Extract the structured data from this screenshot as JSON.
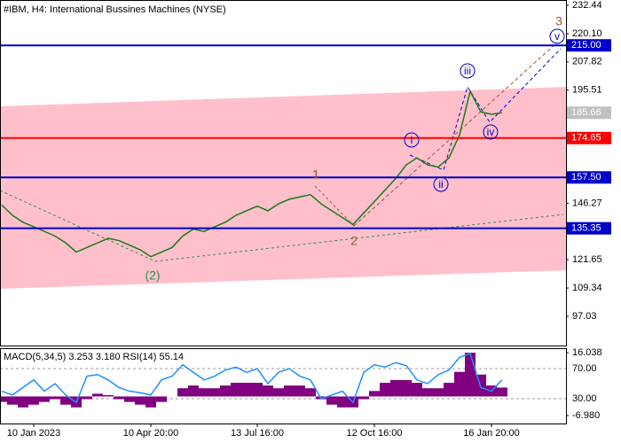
{
  "chart_data": [
    {
      "type": "line",
      "title": "#IBM, H4:  International Bussines Machines (NYSE)",
      "color": "#1a7a1a",
      "categories": [
        null,
        null,
        null,
        "10 Jan 2023",
        null,
        null,
        null,
        null,
        null,
        null,
        null,
        null,
        null,
        null,
        "10 Apr 20:00",
        null,
        null,
        null,
        null,
        null,
        null,
        null,
        null,
        null,
        "13 Jul 16:00",
        null,
        null,
        null,
        null,
        null,
        null,
        null,
        null,
        null,
        null,
        "12 Oct 16:00",
        null,
        null,
        null,
        null,
        null,
        null,
        null,
        null,
        null,
        null,
        "16 Jan 20:00",
        null
      ],
      "values": [
        145.5,
        141,
        138,
        136,
        134,
        132,
        129,
        125,
        127,
        129,
        131,
        130,
        128,
        126,
        123,
        125,
        127,
        132,
        135,
        134,
        136,
        138,
        141,
        143,
        145,
        143,
        146,
        148,
        149,
        150,
        146,
        143,
        140,
        137,
        142,
        147,
        152,
        157,
        163,
        166,
        163,
        162,
        166,
        176,
        195,
        186,
        185,
        185.66
      ],
      "ylim": [
        84.3,
        234.76
      ],
      "yticks": [
        {
          "value": 232.44,
          "label": "232.44"
        },
        {
          "value": 220.1,
          "label": "220.10"
        },
        {
          "value": 207.82,
          "label": "207.82"
        },
        {
          "value": 195.51,
          "label": "195.51"
        },
        {
          "value": 146.27,
          "label": "146.27"
        },
        {
          "value": 121.65,
          "label": "121.65"
        },
        {
          "value": 109.34,
          "label": "109.34"
        },
        {
          "value": 97.03,
          "label": "97.03"
        }
      ],
      "levels": [
        {
          "value": 215,
          "label": "215.00",
          "color": "#0000cd"
        },
        {
          "value": 174.65,
          "label": "174.65",
          "color": "#ff0000"
        },
        {
          "value": 157.5,
          "label": "157.50",
          "color": "#0000cd"
        },
        {
          "value": 135.35,
          "label": "135.35",
          "color": "#0000cd"
        }
      ],
      "annotations": [
        "1",
        "2",
        "(2)",
        "3",
        "i",
        "ii",
        "iii",
        "iv",
        "v"
      ]
    },
    {
      "type": "macd",
      "title": "MACD(5,34,5) 3.253 3.180 RSI(14) 55.14",
      "series": [
        {
          "name": "MACD",
          "color": "#800080",
          "values": [
            -2,
            -3,
            -4,
            -3,
            -2,
            -1,
            -3,
            -4,
            -1,
            1,
            0.5,
            -1,
            -2,
            -3,
            -4,
            -2,
            0,
            3,
            4,
            3,
            3,
            4,
            5,
            5,
            5,
            4,
            3,
            4,
            4,
            3,
            -1,
            -3,
            -4,
            -4,
            -1,
            2,
            5,
            6,
            6,
            5,
            3,
            3,
            5,
            9,
            16,
            8,
            4,
            3.253
          ]
        },
        {
          "name": "RSI(14)",
          "color": "#1e90ff",
          "axis": "y2",
          "values": [
            40,
            35,
            45,
            55,
            40,
            50,
            35,
            25,
            60,
            62,
            55,
            45,
            40,
            38,
            35,
            55,
            60,
            75,
            65,
            55,
            60,
            68,
            72,
            65,
            70,
            50,
            65,
            70,
            60,
            55,
            30,
            35,
            40,
            25,
            65,
            75,
            72,
            78,
            74,
            55,
            50,
            62,
            68,
            85,
            90,
            45,
            40,
            55.14
          ]
        }
      ],
      "ylim": [
        -9.9,
        17.66
      ],
      "yticks": [
        {
          "value": 16.038,
          "label": "16.038"
        },
        {
          "value": -6.98,
          "label": "-6.980"
        }
      ],
      "y2lim": [
        -2.9,
        97.1
      ],
      "y2ticks": [
        {
          "value": 70,
          "label": "70.00"
        },
        {
          "value": 30,
          "label": "30.00"
        }
      ]
    }
  ]
}
